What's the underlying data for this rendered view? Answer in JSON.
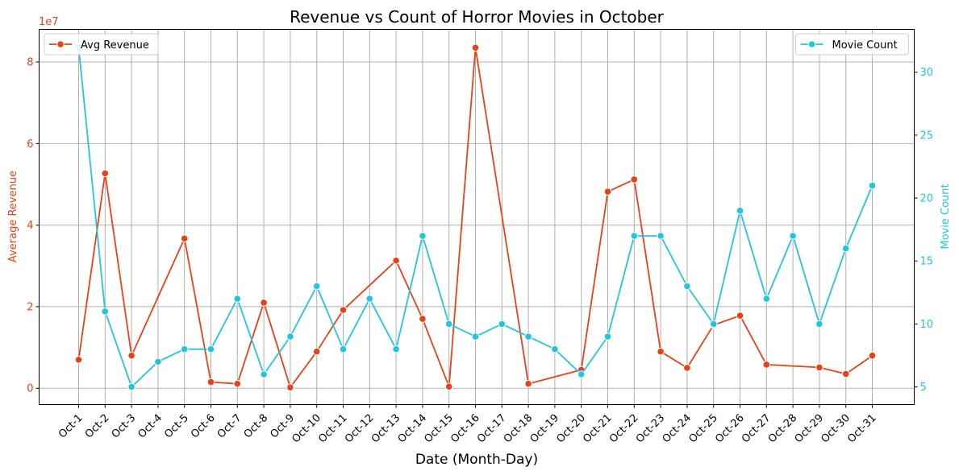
{
  "chart_data": {
    "type": "line",
    "title": "Revenue vs Count of Horror Movies in October",
    "xlabel": "Date (Month-Day)",
    "categories": [
      "Oct-1",
      "Oct-2",
      "Oct-3",
      "Oct-4",
      "Oct-5",
      "Oct-6",
      "Oct-7",
      "Oct-8",
      "Oct-9",
      "Oct-10",
      "Oct-11",
      "Oct-12",
      "Oct-13",
      "Oct-14",
      "Oct-15",
      "Oct-16",
      "Oct-17",
      "Oct-18",
      "Oct-19",
      "Oct-20",
      "Oct-21",
      "Oct-22",
      "Oct-23",
      "Oct-24",
      "Oct-25",
      "Oct-26",
      "Oct-27",
      "Oct-28",
      "Oct-29",
      "Oct-30",
      "Oct-31"
    ],
    "left_axis": {
      "label": "Average Revenue",
      "color": "#e8411a",
      "ylim": [
        -4000000,
        88000000
      ],
      "ticks": [
        0,
        20000000,
        40000000,
        60000000,
        80000000
      ],
      "tick_labels": [
        "0",
        "2",
        "4",
        "6",
        "8"
      ],
      "offset_text": "1e7"
    },
    "right_axis": {
      "label": "Movie Count",
      "color": "#22c6dc",
      "ylim": [
        3.6,
        33.4
      ],
      "ticks": [
        5,
        10,
        15,
        20,
        25,
        30
      ],
      "tick_labels": [
        "5",
        "10",
        "15",
        "20",
        "25",
        "30"
      ]
    },
    "series": [
      {
        "name": "Avg Revenue",
        "axis": "left",
        "color": "#e8411a",
        "points": [
          {
            "x": "Oct-1",
            "y": 7000000
          },
          {
            "x": "Oct-2",
            "y": 52700000
          },
          {
            "x": "Oct-3",
            "y": 8000000
          },
          {
            "x": "Oct-5",
            "y": 36700000
          },
          {
            "x": "Oct-6",
            "y": 1500000
          },
          {
            "x": "Oct-7",
            "y": 1100000
          },
          {
            "x": "Oct-8",
            "y": 21000000
          },
          {
            "x": "Oct-9",
            "y": 200000
          },
          {
            "x": "Oct-10",
            "y": 9000000
          },
          {
            "x": "Oct-11",
            "y": 19200000
          },
          {
            "x": "Oct-13",
            "y": 31300000
          },
          {
            "x": "Oct-14",
            "y": 17000000
          },
          {
            "x": "Oct-15",
            "y": 400000
          },
          {
            "x": "Oct-16",
            "y": 83500000
          },
          {
            "x": "Oct-18",
            "y": 1100000
          },
          {
            "x": "Oct-20",
            "y": 4500000
          },
          {
            "x": "Oct-21",
            "y": 48200000
          },
          {
            "x": "Oct-22",
            "y": 51200000
          },
          {
            "x": "Oct-23",
            "y": 9000000
          },
          {
            "x": "Oct-24",
            "y": 5000000
          },
          {
            "x": "Oct-25",
            "y": 15500000
          },
          {
            "x": "Oct-26",
            "y": 17800000
          },
          {
            "x": "Oct-27",
            "y": 5800000
          },
          {
            "x": "Oct-29",
            "y": 5100000
          },
          {
            "x": "Oct-30",
            "y": 3500000
          },
          {
            "x": "Oct-31",
            "y": 8000000
          }
        ]
      },
      {
        "name": "Movie Count",
        "axis": "right",
        "color": "#22c6dc",
        "points": [
          {
            "x": "Oct-1",
            "y": 32
          },
          {
            "x": "Oct-2",
            "y": 11
          },
          {
            "x": "Oct-3",
            "y": 5
          },
          {
            "x": "Oct-4",
            "y": 7
          },
          {
            "x": "Oct-5",
            "y": 8
          },
          {
            "x": "Oct-6",
            "y": 8
          },
          {
            "x": "Oct-7",
            "y": 12
          },
          {
            "x": "Oct-8",
            "y": 6
          },
          {
            "x": "Oct-9",
            "y": 9
          },
          {
            "x": "Oct-10",
            "y": 13
          },
          {
            "x": "Oct-11",
            "y": 8
          },
          {
            "x": "Oct-12",
            "y": 12
          },
          {
            "x": "Oct-13",
            "y": 8
          },
          {
            "x": "Oct-14",
            "y": 17
          },
          {
            "x": "Oct-15",
            "y": 10
          },
          {
            "x": "Oct-16",
            "y": 9
          },
          {
            "x": "Oct-17",
            "y": 10
          },
          {
            "x": "Oct-18",
            "y": 9
          },
          {
            "x": "Oct-19",
            "y": 8
          },
          {
            "x": "Oct-20",
            "y": 6
          },
          {
            "x": "Oct-21",
            "y": 9
          },
          {
            "x": "Oct-22",
            "y": 17
          },
          {
            "x": "Oct-23",
            "y": 17
          },
          {
            "x": "Oct-24",
            "y": 13
          },
          {
            "x": "Oct-25",
            "y": 10
          },
          {
            "x": "Oct-26",
            "y": 19
          },
          {
            "x": "Oct-27",
            "y": 12
          },
          {
            "x": "Oct-28",
            "y": 17
          },
          {
            "x": "Oct-29",
            "y": 10
          },
          {
            "x": "Oct-30",
            "y": 16
          },
          {
            "x": "Oct-31",
            "y": 21
          }
        ]
      }
    ],
    "legends": [
      {
        "series": "Avg Revenue",
        "placement": "top-left"
      },
      {
        "series": "Movie Count",
        "placement": "top-right"
      }
    ],
    "grid": true
  }
}
